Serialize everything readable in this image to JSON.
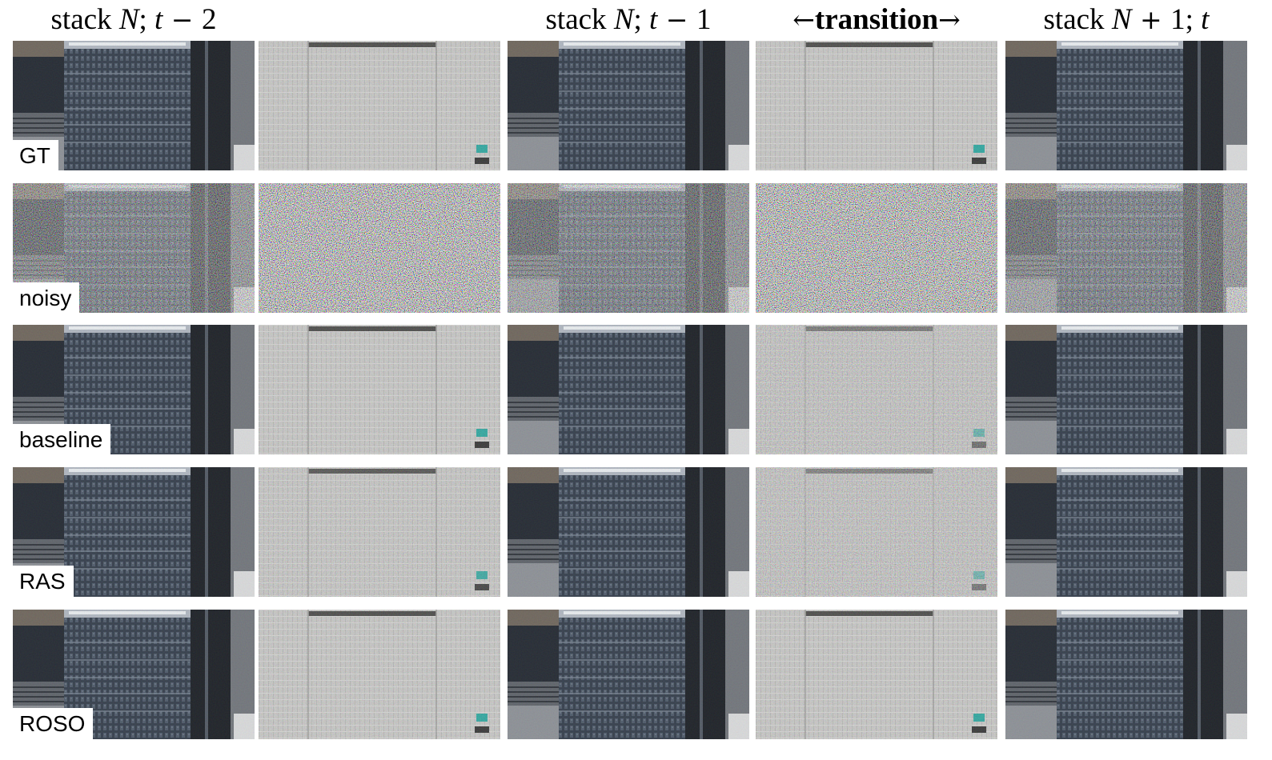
{
  "columns": [
    {
      "id": "c1",
      "header_prefix": "stack ",
      "header_var": "N",
      "header_sep": "; ",
      "header_t": "t",
      "header_op": " − ",
      "header_num": "2"
    },
    {
      "id": "c2",
      "header_prefix": "",
      "header_var": "",
      "header_sep": "",
      "header_t": "",
      "header_op": "",
      "header_num": ""
    },
    {
      "id": "c3",
      "header_prefix": "stack ",
      "header_var": "N",
      "header_sep": "; ",
      "header_t": "t",
      "header_op": " − ",
      "header_num": "1"
    },
    {
      "id": "c4",
      "header_left_arrow": "←",
      "header_word": "transition",
      "header_right_arrow": "→"
    },
    {
      "id": "c5",
      "header_prefix": "stack ",
      "header_var": "N",
      "header_op": " + ",
      "header_num": "1",
      "header_sep": "; ",
      "header_t": "t"
    }
  ],
  "rows": [
    {
      "id": "gt",
      "label": "GT"
    },
    {
      "id": "noisy",
      "label": "noisy"
    },
    {
      "id": "baseline",
      "label": "baseline"
    },
    {
      "id": "ras",
      "label": "RAS"
    },
    {
      "id": "roso",
      "label": "ROSO"
    }
  ],
  "palette": {
    "building_dark": "#2f3947",
    "building_mid": "#4a5666",
    "window_light": "#8792a1",
    "residual_gray": "#c7c7c5",
    "white": "#ffffff"
  }
}
